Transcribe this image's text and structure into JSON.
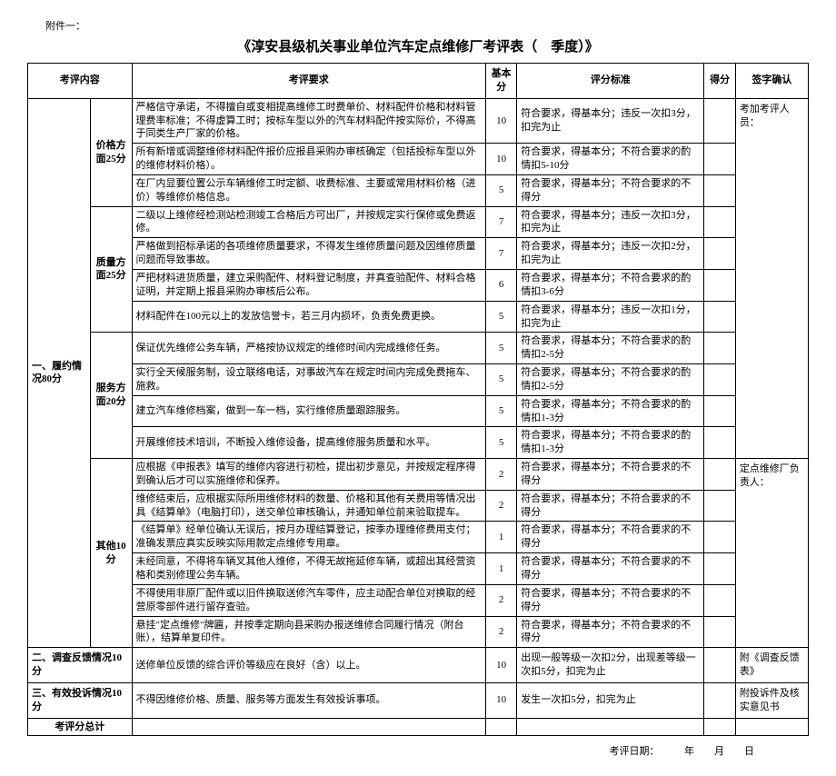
{
  "attachment_label": "附件一：",
  "title": "《淳安县级机关事业单位汽车定点维修厂考评表（　季度）》",
  "headers": {
    "content": "考评内容",
    "requirement": "考评要求",
    "base_score": "基本分",
    "standard": "评分标准",
    "score": "得分",
    "sign": "签字确认"
  },
  "cat1": {
    "label": "一、履约情况80分"
  },
  "sub_price": {
    "label": "价格方面25分"
  },
  "sub_quality": {
    "label": "质量方面25分"
  },
  "sub_service": {
    "label": "服务方面20分"
  },
  "sub_other": {
    "label": "其他10分"
  },
  "rows": [
    {
      "req": "严格信守承诺，不得擅自或变相提高维修工时费单价、材料配件价格和材料管理费率标准；不得虚算工时；按标车型以外的汽车材料配件按实际价，不得高于同类生产厂家的价格。",
      "base": "10",
      "std": "符合要求，得基本分；违反一次扣3分，扣完为止"
    },
    {
      "req": "所有新增或调整维修材料配件报价应报县采购办审核确定（包括投标车型以外的维修材料价格）。",
      "base": "10",
      "std": "符合要求，得基本分；不符合要求的酌情扣5-10分"
    },
    {
      "req": "在厂内显要位置公示车辆维修工时定额、收费标准、主要或常用材料价格（进价）等维修价格信息。",
      "base": "5",
      "std": "符合要求，得基本分；不符合要求的不得分"
    },
    {
      "req": "二级以上维修经检测站检测竣工合格后方可出厂，并按规定实行保修或免费返修。",
      "base": "7",
      "std": "符合要求，得基本分；违反一次扣3分，扣完为止"
    },
    {
      "req": "严格做到招标承诺的各项维修质量要求，不得发生维修质量问题及因维修质量问题而导致事故。",
      "base": "7",
      "std": "符合要求，得基本分；违反一次扣2分，扣完为止"
    },
    {
      "req": "严把材料进货质量，建立采购配件、材料登记制度，并真查验配件、材料合格证明，并定期上报县采购办审核后公布。",
      "base": "6",
      "std": "符合要求，得基本分；不符合要求的酌情扣3-6分"
    },
    {
      "req": "材料配件在100元以上的发放信誉卡，若三月内损坏，负责免费更换。",
      "base": "5",
      "std": "符合要求，得基本分；违反一次扣1分，扣完为止"
    },
    {
      "req": "保证优先维修公务车辆，严格按协议规定的维修时间内完成维修任务。",
      "base": "5",
      "std": "符合要求，得基本分；不符合要求的酌情扣2-5分"
    },
    {
      "req": "实行全天候服务制，设立联络电话，对事故汽车在规定时间内完成免费拖车、施救。",
      "base": "5",
      "std": "符合要求，得基本分；不符合要求的酌情扣2-5分"
    },
    {
      "req": "建立汽车维修档案，做到一车一档，实行维修质量跟踪服务。",
      "base": "5",
      "std": "符合要求，得基本分；不符合要求的酌情扣1-3分"
    },
    {
      "req": "开展维修技术培训，不断投入维修设备，提高维修服务质量和水平。",
      "base": "5",
      "std": "符合要求，得基本分；不符合要求的酌情扣1-3分"
    },
    {
      "req": "应根据《申报表》填写的维修内容进行初检，提出初步意见，并按规定程序得到确认后才可以实施维修和保养。",
      "base": "2",
      "std": "符合要求，得基本分；不符合要求的不得分"
    },
    {
      "req": "维修结束后，应根据实际所用维修材料的数量、价格和其他有关费用等情况出具《结算单》（电脑打印），送交单位审核确认，并通知单位前来验取提车。",
      "base": "2",
      "std": "符合要求，得基本分；不符合要求的不得分"
    },
    {
      "req": "《结算单》经单位确认无误后，按月办理结算登记，按季办理维修费用支付；准确发票应真实反映实际用款定点维修专用章。",
      "base": "1",
      "std": "符合要求，得基本分；不符合要求的不得分"
    },
    {
      "req": "未经同意，不得将车辆叉其他人维修，不得无故拖延修车辆，或超出其经营资格和类别修理公务车辆。",
      "base": "1",
      "std": "符合要求，得基本分；不符合要求的不得分"
    },
    {
      "req": "不得使用非原厂配件或以旧件换取送修汽车零件，应主动配合单位对换取的经营原零部件进行留存查验。",
      "base": "2",
      "std": "符合要求，得基本分；不符合要求的不得分"
    },
    {
      "req": "悬挂\"定点维修\"牌匾，并按季定期向县采购办报送维修合同履行情况（附台账），结算单复印件。",
      "base": "2",
      "std": "符合要求，得基本分；不符合要求的不得分"
    }
  ],
  "row_survey": {
    "label": "二、调查反馈情况10分",
    "req": "送修单位反馈的综合评价等级应在良好（含）以上。",
    "base": "10",
    "std": "出现一般等级一次扣2分，出现差等级一次扣5分，扣完为止",
    "sign": "附《调查反馈表》"
  },
  "row_complaint": {
    "label": "三、有效投诉情况10分",
    "req": "不得因维修价格、质量、服务等方面发生有效投诉事项。",
    "base": "10",
    "std": "发生一次扣5分，扣完为止",
    "sign": "附投诉件及核实意见书"
  },
  "row_total": {
    "label": "考评分总计"
  },
  "sign_top": "考加考评人员：",
  "sign_mid": "定点维修厂负责人：",
  "footer": "考评日期：　　　年　　月　　日"
}
